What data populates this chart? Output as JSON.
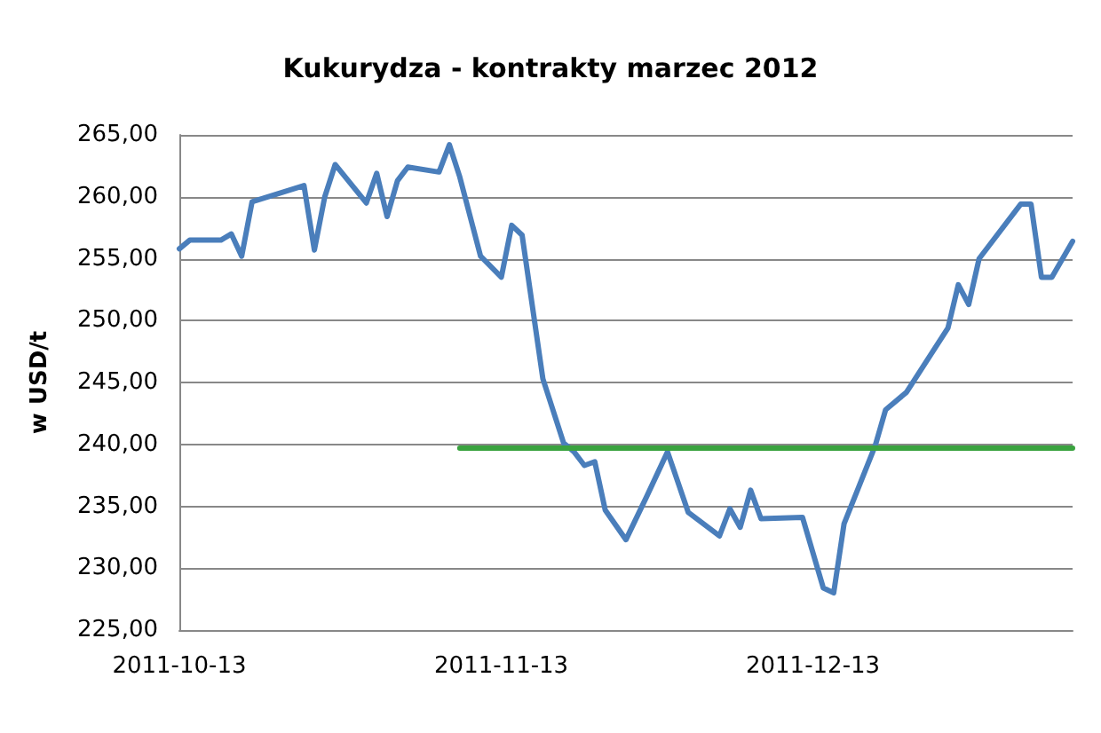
{
  "chart_data": {
    "type": "line",
    "title": "Kukurydza - kontrakty marzec 2012",
    "ylabel": "w USD/t",
    "series": [
      {
        "color": "#4a7ebb",
        "x": [
          "2011-10-13",
          "2011-10-14",
          "2011-10-17",
          "2011-10-18",
          "2011-10-19",
          "2011-10-20",
          "2011-10-25",
          "2011-10-26",
          "2011-10-27",
          "2011-10-28",
          "2011-10-31",
          "2011-11-01",
          "2011-11-02",
          "2011-11-03",
          "2011-11-04",
          "2011-11-07",
          "2011-11-08",
          "2011-11-09",
          "2011-11-11",
          "2011-11-13",
          "2011-11-14",
          "2011-11-15",
          "2011-11-17",
          "2011-11-19",
          "2011-11-20",
          "2011-11-21",
          "2011-11-22",
          "2011-11-23",
          "2011-11-25",
          "2011-11-27",
          "2011-11-29",
          "2011-12-01",
          "2011-12-04",
          "2011-12-05",
          "2011-12-06",
          "2011-12-07",
          "2011-12-08",
          "2011-12-12",
          "2011-12-14",
          "2011-12-15",
          "2011-12-16",
          "2011-12-19",
          "2011-12-20",
          "2011-12-22",
          "2011-12-26",
          "2011-12-27",
          "2011-12-28",
          "2011-12-29",
          "2012-01-02",
          "2012-01-03",
          "2012-01-04",
          "2012-01-05",
          "2012-01-07"
        ],
        "values": [
          255.8,
          256.5,
          256.5,
          257.0,
          255.2,
          259.6,
          260.9,
          255.7,
          260.0,
          262.6,
          259.5,
          261.9,
          258.4,
          261.3,
          262.4,
          262.0,
          264.2,
          261.6,
          255.2,
          253.5,
          257.7,
          256.9,
          245.3,
          240.1,
          239.4,
          238.3,
          238.6,
          234.7,
          232.3,
          235.8,
          239.4,
          234.5,
          232.6,
          234.8,
          233.3,
          236.3,
          234.0,
          234.1,
          228.4,
          228.0,
          233.6,
          239.9,
          242.8,
          244.2,
          249.4,
          252.9,
          251.3,
          255.0,
          259.4,
          259.4,
          253.5,
          253.5,
          256.4
        ]
      },
      {
        "color": "#3aa33f",
        "x": [
          "2011-11-09",
          "2012-01-07"
        ],
        "values": [
          239.7,
          239.7
        ]
      }
    ],
    "xlim": [
      "2011-10-13",
      "2012-01-07"
    ],
    "xticks": [
      "2011-10-13",
      "2011-11-13",
      "2011-12-13"
    ],
    "ylim": [
      225,
      265
    ],
    "yticks": [
      {
        "value": 225,
        "label": "225,00"
      },
      {
        "value": 230,
        "label": "230,00"
      },
      {
        "value": 235,
        "label": "235,00"
      },
      {
        "value": 240,
        "label": "240,00"
      },
      {
        "value": 245,
        "label": "245,00"
      },
      {
        "value": 250,
        "label": "250,00"
      },
      {
        "value": 255,
        "label": "255,00"
      },
      {
        "value": 260,
        "label": "260,00"
      },
      {
        "value": 265,
        "label": "265,00"
      }
    ],
    "grid": "y",
    "marker": "none",
    "line_style": "solid"
  }
}
